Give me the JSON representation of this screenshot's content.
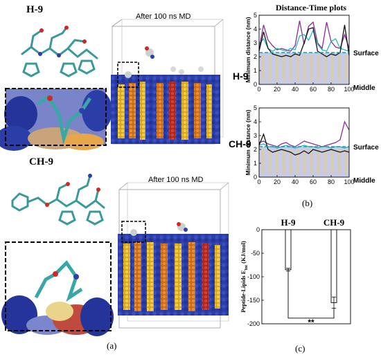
{
  "panels": {
    "a": {
      "label": "(a)",
      "top_molecule": "H-9",
      "bottom_molecule": "CH-9",
      "top_md_caption": "After 100 ns MD",
      "bottom_md_caption": "After 100 ns MD"
    },
    "b": {
      "label": "(b)"
    },
    "c": {
      "label": "(c)"
    }
  },
  "colors": {
    "membrane_blue": "#2b3ea8",
    "lipid_yellow": "#e8d23a",
    "lipid_orange": "#e08a2a",
    "lipid_red": "#c8342a",
    "peptide_teal": "#3aa7a7",
    "line_black": "#111111",
    "line_purple": "#8a2a9a",
    "line_teal": "#1fb5c0",
    "band_fill": "#c8cbe6"
  },
  "chart_data": [
    {
      "type": "line",
      "title": "Distance-Time plots",
      "row_label": "H-9",
      "ylabel": "Minimum distance (nm)",
      "ylim": [
        0,
        5
      ],
      "xlim": [
        0,
        100
      ],
      "xticks": [
        0,
        20,
        40,
        60,
        80,
        100
      ],
      "yticks": [
        0,
        1,
        2,
        3,
        4,
        5
      ],
      "surface_label": "Surface",
      "middle_label": "Middle",
      "surface_level": 2.3,
      "series": [
        {
          "color": "#8a2a9a",
          "x": [
            0,
            5,
            10,
            15,
            20,
            25,
            30,
            35,
            40,
            45,
            50,
            55,
            60,
            65,
            70,
            75,
            80,
            85,
            90,
            95,
            100
          ],
          "y": [
            2.6,
            4.3,
            3.2,
            2.8,
            2.5,
            2.6,
            2.5,
            2.4,
            2.8,
            4.6,
            2.9,
            4.2,
            4.5,
            3.0,
            2.6,
            4.5,
            3.1,
            2.7,
            2.6,
            3.6,
            2.6
          ]
        },
        {
          "color": "#1fb5c0",
          "x": [
            0,
            5,
            10,
            15,
            20,
            25,
            30,
            35,
            40,
            45,
            50,
            55,
            60,
            65,
            70,
            75,
            80,
            85,
            90,
            95,
            100
          ],
          "y": [
            2.9,
            3.3,
            2.6,
            2.4,
            2.6,
            2.5,
            2.4,
            2.6,
            2.5,
            3.5,
            3.6,
            3.2,
            3.9,
            2.9,
            2.5,
            2.4,
            3.1,
            3.3,
            2.6,
            2.5,
            2.4
          ]
        },
        {
          "color": "#111111",
          "x": [
            0,
            5,
            10,
            15,
            20,
            25,
            30,
            35,
            40,
            45,
            50,
            55,
            60,
            65,
            70,
            75,
            80,
            85,
            90,
            95,
            100
          ],
          "y": [
            2.4,
            3.8,
            2.6,
            2.2,
            2.1,
            2.0,
            2.1,
            2.0,
            2.2,
            2.1,
            3.0,
            4.0,
            4.1,
            2.4,
            2.2,
            2.0,
            2.2,
            2.1,
            2.3,
            4.3,
            2.1
          ]
        }
      ]
    },
    {
      "type": "line",
      "row_label": "CH-9",
      "ylabel": "Minimum distance (nm)",
      "ylim": [
        0,
        5
      ],
      "xlim": [
        0,
        100
      ],
      "xticks": [
        0,
        20,
        40,
        60,
        80,
        100
      ],
      "yticks": [
        0,
        1,
        2,
        3,
        4,
        5
      ],
      "surface_label": "Surface",
      "middle_label": "Middle",
      "surface_level": 2.2,
      "series": [
        {
          "color": "#8a2a9a",
          "x": [
            0,
            5,
            10,
            15,
            20,
            25,
            30,
            35,
            40,
            45,
            50,
            55,
            60,
            65,
            70,
            75,
            80,
            85,
            90,
            95,
            100
          ],
          "y": [
            2.5,
            2.6,
            2.4,
            2.3,
            2.2,
            2.4,
            2.5,
            2.3,
            2.2,
            2.4,
            2.6,
            2.5,
            2.4,
            2.3,
            2.2,
            2.3,
            2.4,
            2.5,
            2.7,
            4.0,
            3.4
          ]
        },
        {
          "color": "#1fb5c0",
          "x": [
            0,
            5,
            10,
            15,
            20,
            25,
            30,
            35,
            40,
            45,
            50,
            55,
            60,
            65,
            70,
            75,
            80,
            85,
            90,
            95,
            100
          ],
          "y": [
            2.3,
            2.4,
            2.2,
            2.2,
            2.1,
            2.2,
            2.3,
            2.2,
            2.1,
            2.2,
            2.3,
            2.2,
            2.2,
            2.1,
            2.2,
            2.2,
            2.1,
            2.2,
            2.2,
            2.1,
            2.2
          ]
        },
        {
          "color": "#111111",
          "x": [
            0,
            5,
            10,
            15,
            20,
            25,
            30,
            35,
            40,
            45,
            50,
            55,
            60,
            65,
            70,
            75,
            80,
            85,
            90,
            95,
            100
          ],
          "y": [
            2.3,
            3.1,
            2.0,
            1.8,
            1.9,
            2.0,
            1.9,
            1.8,
            1.6,
            1.7,
            1.9,
            1.7,
            2.0,
            1.9,
            1.8,
            1.9,
            2.0,
            1.9,
            1.8,
            1.9,
            1.8
          ]
        }
      ]
    },
    {
      "type": "bar",
      "categories": [
        "H-9",
        "CH-9"
      ],
      "values": [
        -85,
        -155
      ],
      "errors": [
        3,
        12
      ],
      "ylabel": "Peptide-Lipids E",
      "ylabel_sub": "Int",
      "ylabel_unit": " (KJ/mol)",
      "ylim": [
        -200,
        0
      ],
      "yticks": [
        0,
        -50,
        -100,
        -150,
        -200
      ],
      "significance": "**"
    }
  ]
}
